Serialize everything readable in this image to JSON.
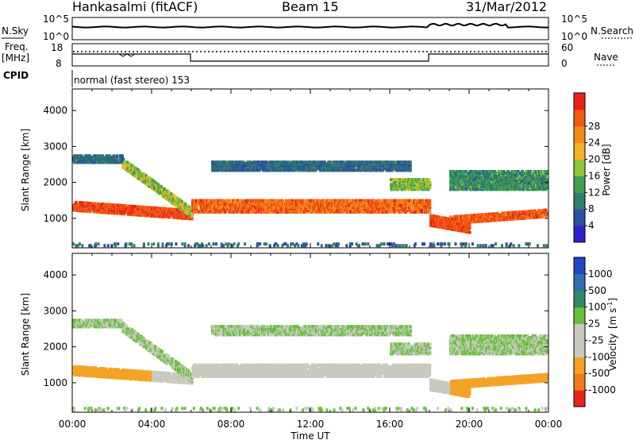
{
  "header": {
    "station": "Hankasalmi (fitACF)",
    "beam": "Beam 15",
    "date": "31/Mar/2012"
  },
  "top_panels": {
    "nsky_label": "N.Sky",
    "nsearch_label": "N.Search",
    "nsky_ticks": [
      "10^5",
      "10^0"
    ],
    "freq_label_1": "Freq.",
    "freq_label_2": "[MHz]",
    "freq_ticks": [
      "18",
      "8"
    ],
    "nave_ticks": [
      "60",
      "0"
    ],
    "nave_label": "Nave",
    "cpid_label": "CPID",
    "cpid_text": "normal (fast stereo) 153"
  },
  "colors": {
    "power": [
      "#2a1fd0",
      "#2c4fa0",
      "#2f7d6d",
      "#3fa14f",
      "#8cc63a",
      "#f2b324",
      "#f38a1b",
      "#f05a14",
      "#e8231a"
    ],
    "velocity": [
      "#2244c6",
      "#2e6eb0",
      "#2f8a6a",
      "#68c13d",
      "#c9c9c0",
      "#c9c9c0",
      "#f4a326",
      "#ee7a1c",
      "#e8231a"
    ]
  },
  "chart_data": [
    {
      "type": "heatmap",
      "panel": "power",
      "xlabel": "Time UT",
      "ylabel": "Slant Range [km]",
      "xlim": [
        0,
        24
      ],
      "ylim": [
        180,
        4600
      ],
      "x_tick_labels": [
        "00:00",
        "04:00",
        "08:00",
        "12:00",
        "16:00",
        "20:00",
        "00:00"
      ],
      "x_ticks": [
        0,
        4,
        8,
        12,
        16,
        20,
        24
      ],
      "y_ticks": [
        1000,
        2000,
        3000,
        4000
      ],
      "colorbar_label": "Power [dB]",
      "colorbar_ticks": [
        "4",
        "8",
        "12",
        "16",
        "20",
        "24",
        "28"
      ],
      "colorbar_range": [
        0,
        30
      ],
      "description_points": [
        {
          "t": 0.5,
          "range": 1350,
          "value": 26
        },
        {
          "t": 3.0,
          "range": 1500,
          "value": 22
        },
        {
          "t": 6.0,
          "range": 1100,
          "value": 28
        },
        {
          "t": 12.0,
          "range": 1500,
          "value": 24
        },
        {
          "t": 17.0,
          "range": 1600,
          "value": 26
        },
        {
          "t": 20.0,
          "range": 1000,
          "value": 26
        },
        {
          "t": 23.0,
          "range": 1100,
          "value": 26
        },
        {
          "t": 2.0,
          "range": 2700,
          "value": 6
        },
        {
          "t": 13.0,
          "range": 2700,
          "value": 6
        },
        {
          "t": 22.0,
          "range": 2100,
          "value": 12
        }
      ]
    },
    {
      "type": "heatmap",
      "panel": "velocity",
      "xlabel": "Time UT",
      "ylabel": "Slant Range [km]",
      "xlim": [
        0,
        24
      ],
      "ylim": [
        180,
        4600
      ],
      "x_tick_labels": [
        "00:00",
        "04:00",
        "08:00",
        "12:00",
        "16:00",
        "20:00",
        "00:00"
      ],
      "x_ticks": [
        0,
        4,
        8,
        12,
        16,
        20,
        24
      ],
      "y_ticks": [
        1000,
        2000,
        3000,
        4000
      ],
      "colorbar_label": "Velocity",
      "colorbar_unit": "[m s",
      "colorbar_unit_exp": "-1",
      "colorbar_unit_end": "]",
      "colorbar_ticks": [
        "1000",
        "500",
        "100",
        "25",
        "-25",
        "-100",
        "-500",
        "-1000"
      ],
      "colorbar_range": [
        -1000,
        1000
      ]
    }
  ]
}
